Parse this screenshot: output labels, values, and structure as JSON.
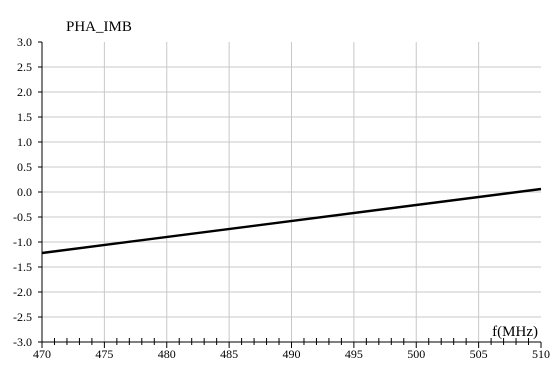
{
  "chart_data": {
    "type": "line",
    "title": "PHA_IMB",
    "xlabel": "f(MHz)",
    "ylabel": "",
    "xlim": [
      470,
      510
    ],
    "ylim": [
      -3.0,
      3.0
    ],
    "x_ticks": [
      "470",
      "475",
      "480",
      "485",
      "490",
      "495",
      "500",
      "505",
      "510"
    ],
    "y_ticks": [
      "3.0",
      "2.5",
      "2.0",
      "1.5",
      "1.0",
      "0.5",
      "0.0",
      "-0.5",
      "-1.0",
      "-1.5",
      "-2.0",
      "-2.5",
      "-3.0"
    ],
    "grid": true,
    "series": [
      {
        "x": [
          470,
          510
        ],
        "y": [
          -1.22,
          0.06
        ]
      }
    ],
    "colors": {
      "grid": "#c8c8c8",
      "line": "#000000",
      "axis": "#000000"
    }
  }
}
